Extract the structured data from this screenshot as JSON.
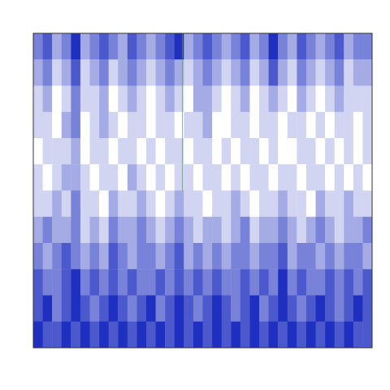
{
  "chart_data": {
    "type": "heatmap",
    "color": "#1f2fbf",
    "zlim": [
      0,
      5
    ],
    "tick_labels": false,
    "cells": [
      [
        3,
        4,
        2,
        3,
        5,
        2,
        3,
        4,
        3,
        2,
        4,
        3,
        2,
        3,
        4,
        5,
        2,
        3,
        4,
        3,
        2,
        3,
        4,
        2,
        3,
        5,
        3,
        2,
        4,
        3,
        2,
        3,
        4,
        2,
        3,
        3
      ],
      [
        2,
        3,
        1,
        2,
        4,
        1,
        2,
        3,
        1,
        2,
        3,
        2,
        1,
        2,
        3,
        2,
        1,
        2,
        3,
        2,
        1,
        2,
        3,
        1,
        2,
        4,
        2,
        1,
        3,
        2,
        1,
        2,
        3,
        1,
        2,
        2
      ],
      [
        1,
        2,
        0,
        1,
        3,
        1,
        1,
        2,
        0,
        1,
        2,
        1,
        0,
        1,
        2,
        1,
        0,
        2,
        2,
        1,
        0,
        1,
        2,
        0,
        1,
        2,
        1,
        0,
        2,
        1,
        0,
        1,
        2,
        1,
        1,
        1
      ],
      [
        1,
        1,
        0,
        2,
        3,
        0,
        1,
        2,
        1,
        0,
        1,
        1,
        0,
        1,
        1,
        0,
        1,
        1,
        2,
        0,
        0,
        1,
        1,
        0,
        1,
        1,
        0,
        1,
        1,
        0,
        1,
        0,
        1,
        1,
        0,
        1
      ],
      [
        0,
        1,
        1,
        1,
        2,
        0,
        1,
        1,
        0,
        1,
        1,
        0,
        1,
        0,
        1,
        1,
        0,
        1,
        1,
        0,
        1,
        0,
        1,
        1,
        0,
        1,
        0,
        0,
        1,
        1,
        0,
        1,
        0,
        1,
        0,
        1
      ],
      [
        1,
        0,
        1,
        2,
        2,
        1,
        0,
        1,
        1,
        0,
        2,
        1,
        0,
        1,
        0,
        1,
        1,
        0,
        1,
        1,
        0,
        1,
        0,
        1,
        1,
        0,
        1,
        1,
        0,
        1,
        1,
        0,
        1,
        0,
        1,
        0
      ],
      [
        1,
        1,
        2,
        1,
        3,
        1,
        1,
        0,
        2,
        1,
        1,
        2,
        1,
        0,
        1,
        2,
        1,
        1,
        0,
        1,
        1,
        2,
        1,
        0,
        1,
        1,
        2,
        1,
        1,
        0,
        2,
        1,
        1,
        2,
        1,
        1
      ],
      [
        2,
        3,
        2,
        2,
        3,
        1,
        2,
        1,
        3,
        2,
        2,
        3,
        2,
        1,
        2,
        3,
        2,
        1,
        2,
        2,
        1,
        2,
        3,
        1,
        2,
        2,
        3,
        2,
        1,
        2,
        3,
        2,
        1,
        2,
        2,
        3
      ],
      [
        3,
        2,
        3,
        4,
        3,
        2,
        3,
        2,
        4,
        3,
        2,
        3,
        3,
        2,
        3,
        4,
        2,
        3,
        2,
        3,
        2,
        3,
        3,
        2,
        3,
        3,
        4,
        2,
        3,
        3,
        2,
        3,
        2,
        3,
        3,
        2
      ],
      [
        4,
        3,
        3,
        4,
        5,
        3,
        4,
        3,
        4,
        3,
        4,
        3,
        3,
        4,
        3,
        4,
        3,
        4,
        3,
        4,
        3,
        3,
        4,
        3,
        4,
        3,
        5,
        3,
        4,
        3,
        3,
        4,
        3,
        4,
        3,
        4
      ],
      [
        4,
        5,
        3,
        4,
        5,
        4,
        3,
        4,
        5,
        4,
        3,
        4,
        5,
        3,
        4,
        5,
        4,
        3,
        4,
        5,
        4,
        3,
        4,
        5,
        3,
        4,
        5,
        4,
        3,
        4,
        5,
        4,
        3,
        4,
        5,
        4
      ],
      [
        5,
        4,
        4,
        5,
        4,
        5,
        4,
        5,
        4,
        5,
        4,
        5,
        4,
        5,
        4,
        5,
        4,
        5,
        4,
        5,
        4,
        5,
        4,
        5,
        4,
        5,
        4,
        5,
        4,
        5,
        4,
        5,
        4,
        5,
        4,
        4
      ]
    ]
  }
}
